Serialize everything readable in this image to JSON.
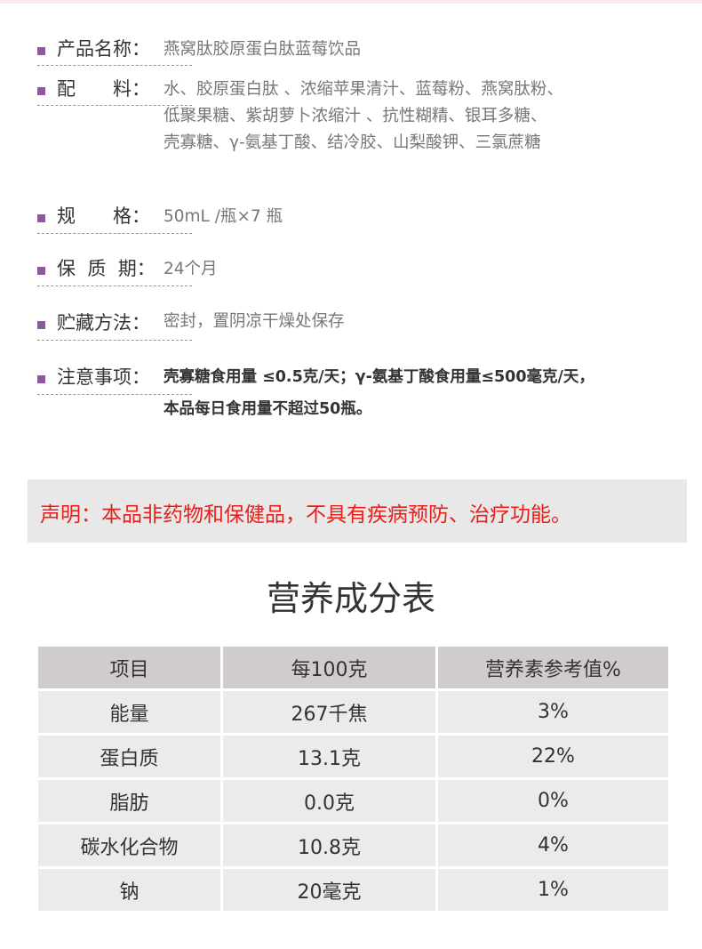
{
  "info": [
    {
      "label": "产品名称：",
      "lines": [
        "燕窝肽胶原蛋白肽蓝莓饮品"
      ]
    },
    {
      "label": "配　　料：",
      "lines": [
        "水、胶原蛋白肽 、浓缩苹果清汁、蓝莓粉、燕窝肽粉、",
        "低聚果糖、紫胡萝卜浓缩汁 、抗性糊精、银耳多糖、",
        "壳寡糖、γ-氨基丁酸、结冷胶、山梨酸钾、三氯蔗糖"
      ]
    },
    {
      "label": "规　　格：",
      "lines": [
        "50mL /瓶×7 瓶"
      ]
    },
    {
      "label": "保  质  期：",
      "lines": [
        "24个月"
      ]
    },
    {
      "label": "贮藏方法：",
      "lines": [
        "密封，置阴凉干燥处保存"
      ]
    },
    {
      "label": "注意事项：",
      "lines": [
        "壳寡糖食用量 ≤0.5克/天；γ-氨基丁酸食用量≤500毫克/天，",
        "本品每日食用量不超过50瓶。"
      ]
    }
  ],
  "notice": "声明：本品非药物和保健品，不具有疾病预防、治疗功能。",
  "nutrition": {
    "title": "营养成分表",
    "headers": [
      "项目",
      "每100克",
      "营养素参考值%"
    ],
    "rows": [
      [
        "能量",
        "267千焦",
        "3%"
      ],
      [
        "蛋白质",
        "13.1克",
        "22%"
      ],
      [
        "脂肪",
        "0.0克",
        "0%"
      ],
      [
        "碳水化合物",
        "10.8克",
        "4%"
      ],
      [
        "钠",
        "20毫克",
        "1%"
      ]
    ]
  },
  "colors": {
    "bullet": "#8a5a9a",
    "notice_text": "#e8201a",
    "notice_bg": "#e8e8e8",
    "table_header_bg": "#d1cccc",
    "table_row_bg": "#ebebeb"
  }
}
